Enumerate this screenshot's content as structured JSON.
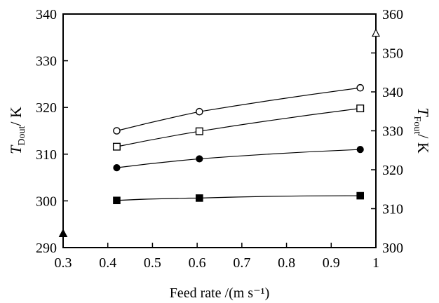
{
  "chart_data": {
    "type": "line",
    "xlabel": "Feed rate /(m s⁻¹)",
    "ylabel_left": {
      "main": "T",
      "sub": "Dout",
      "unit": "/ K"
    },
    "ylabel_right": {
      "main": "T",
      "sub": "Fout",
      "unit": "/ K"
    },
    "xlim": [
      0.3,
      1.0
    ],
    "ylim_left": [
      290,
      340
    ],
    "ylim_right": [
      300,
      360
    ],
    "x_ticks": [
      "0.3",
      "0.4",
      "0.5",
      "0.6",
      "0.7",
      "0.8",
      "0.9",
      "1"
    ],
    "y_left_ticks": [
      "290",
      "300",
      "310",
      "320",
      "330",
      "340"
    ],
    "y_right_ticks": [
      "300",
      "310",
      "320",
      "330",
      "340",
      "350",
      "360"
    ],
    "grid": false,
    "series": [
      {
        "marker": "open-circle",
        "axis": "left",
        "x": [
          0.42,
          0.605,
          0.965
        ],
        "y": [
          315.0,
          319.1,
          324.2
        ]
      },
      {
        "marker": "open-square",
        "axis": "left",
        "x": [
          0.42,
          0.605,
          0.965
        ],
        "y": [
          311.6,
          314.9,
          319.8
        ]
      },
      {
        "marker": "filled-circle",
        "axis": "left",
        "x": [
          0.42,
          0.605,
          0.965
        ],
        "y": [
          307.1,
          309.0,
          311.0
        ]
      },
      {
        "marker": "filled-square",
        "axis": "left",
        "x": [
          0.42,
          0.605,
          0.965
        ],
        "y": [
          300.1,
          300.6,
          301.1
        ]
      }
    ],
    "reference_markers": [
      {
        "marker": "filled-triangle",
        "axis": "left",
        "x": 0.3,
        "y": 293
      },
      {
        "marker": "open-triangle",
        "axis": "right",
        "x": 1.0,
        "y": 355
      }
    ]
  }
}
